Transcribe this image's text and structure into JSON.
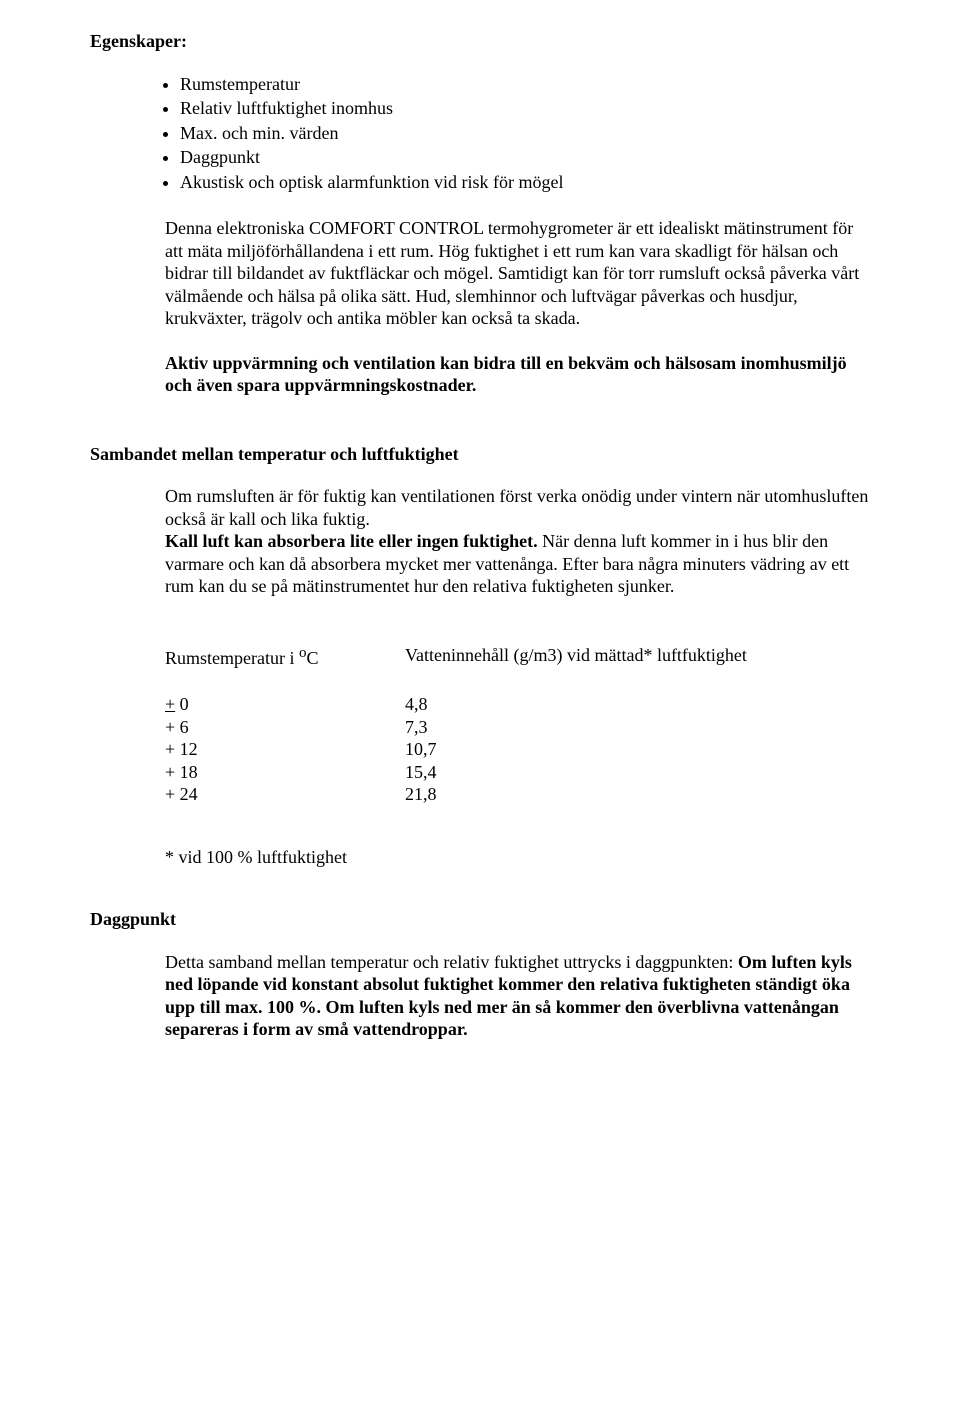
{
  "egenskaper": {
    "heading": "Egenskaper:",
    "bullets": [
      "Rumstemperatur",
      "Relativ luftfuktighet inomhus",
      "Max. och min. värden",
      "Daggpunkt",
      "Akustisk och optisk alarmfunktion vid risk för mögel"
    ],
    "para1": "Denna elektroniska COMFORT CONTROL termohygrometer är ett idealiskt mätinstrument för att mäta miljöförhållandena i ett rum. Hög fuktighet i ett rum kan vara skadligt för hälsan och bidrar till bildandet av fuktfläckar och mögel. Samtidigt kan för torr rumsluft också påverka vårt välmående och hälsa på olika sätt. Hud, slemhinnor och luftvägar påverkas och husdjur, krukväxter, trägolv och antika möbler kan också ta skada.",
    "para2_bold": "Aktiv uppvärmning och ventilation kan bidra till en bekväm och hälsosam inomhusmiljö och även spara uppvärmningskostnader."
  },
  "sambandet": {
    "heading": "Sambandet mellan temperatur och luftfuktighet",
    "para1_a": "Om rumsluften är för fuktig kan ventilationen först verka onödig under vintern när utomhusluften också är kall och lika fuktig.",
    "para1_bold": "Kall luft kan absorbera lite eller ingen fuktighet.",
    "para1_b": " När denna luft kommer in i hus blir den varmare och kan då absorbera mycket mer vattenånga. Efter bara några minuters vädring av ett rum kan du se på mätinstrumentet hur den relativa fuktigheten sjunker.",
    "table": {
      "header_temp_a": "Rumstemperatur i ",
      "header_temp_sup": "o",
      "header_temp_b": "C",
      "header_water": "Vatteninnehåll (g/m3) vid mättad* luftfuktighet",
      "rows": [
        {
          "temp_a": "+",
          "temp_under": " 0",
          "water": "4,8"
        },
        {
          "temp_a": "+ 6",
          "temp_under": "",
          "water": "7,3"
        },
        {
          "temp_a": "+ 12",
          "temp_under": "",
          "water": "10,7"
        },
        {
          "temp_a": "+ 18",
          "temp_under": "",
          "water": "15,4"
        },
        {
          "temp_a": "+ 24",
          "temp_under": "",
          "water": "21,8"
        }
      ],
      "footnote": "* vid 100 % luftfuktighet"
    }
  },
  "daggpunkt": {
    "heading": "Daggpunkt",
    "para_a": "Detta samband mellan temperatur och relativ fuktighet uttrycks i daggpunkten: ",
    "para_bold": "Om luften kyls ned löpande vid konstant absolut fuktighet kommer den relativa fuktigheten ständigt öka upp till max. 100 %. Om luften kyls ned mer än så kommer den överblivna vattenångan separeras i form av små vattendroppar."
  }
}
